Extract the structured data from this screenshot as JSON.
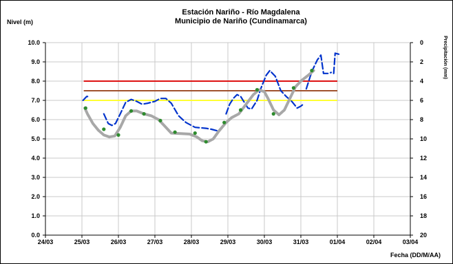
{
  "chart_data": {
    "type": "line",
    "title": "Estación Nariño  - Río Magdalena",
    "subtitle": "Municipio de Nariño (Cundinamarca)",
    "ylabel": "Nivel (m)",
    "xlabel": "Fecha (DD/M/AA)",
    "y2label": "Precipitación (mm)",
    "grid": true,
    "legend": "none",
    "ylim": [
      0,
      10
    ],
    "y2lim": [
      20,
      0
    ],
    "yticks": [
      "0.0",
      "1.0",
      "2.0",
      "3.0",
      "4.0",
      "5.0",
      "6.0",
      "7.0",
      "8.0",
      "9.0",
      "10.0"
    ],
    "y2ticks": [
      "0",
      "2",
      "4",
      "6",
      "8",
      "10",
      "12",
      "14",
      "16",
      "18",
      "20"
    ],
    "xticks": [
      "24/03",
      "25/03",
      "26/03",
      "27/03",
      "28/03",
      "29/03",
      "30/03",
      "31/03",
      "01/04",
      "02/04",
      "03/04"
    ],
    "thresholds": [
      {
        "value": 8.0,
        "color": "#dd1111"
      },
      {
        "value": 7.5,
        "color": "#a0522d"
      },
      {
        "value": 7.0,
        "color": "#ffff33"
      }
    ],
    "series": [
      {
        "style": "dashed",
        "color": "#0033cc",
        "segments": [
          [
            [
              1.03,
              7.0
            ],
            [
              1.13,
              7.2
            ],
            [
              1.2,
              7.2
            ]
          ],
          [
            [
              1.6,
              6.3
            ],
            [
              1.72,
              5.8
            ],
            [
              1.82,
              5.7
            ],
            [
              1.92,
              5.8
            ],
            [
              2.05,
              6.3
            ],
            [
              2.2,
              6.9
            ],
            [
              2.35,
              7.05
            ],
            [
              2.5,
              6.95
            ],
            [
              2.65,
              6.8
            ],
            [
              2.8,
              6.85
            ],
            [
              3.0,
              6.95
            ],
            [
              3.15,
              7.1
            ],
            [
              3.3,
              7.1
            ],
            [
              3.45,
              6.85
            ],
            [
              3.65,
              6.2
            ],
            [
              3.85,
              5.85
            ],
            [
              4.1,
              5.6
            ],
            [
              4.4,
              5.55
            ],
            [
              4.55,
              5.5
            ],
            [
              4.75,
              5.4
            ],
            [
              4.85,
              5.6
            ]
          ],
          [
            [
              4.95,
              6.3
            ],
            [
              5.05,
              6.8
            ],
            [
              5.15,
              7.1
            ],
            [
              5.25,
              7.3
            ],
            [
              5.35,
              7.2
            ],
            [
              5.55,
              6.6
            ],
            [
              5.65,
              6.55
            ],
            [
              5.8,
              7.0
            ],
            [
              5.9,
              7.6
            ],
            [
              6.05,
              8.3
            ],
            [
              6.15,
              8.55
            ],
            [
              6.3,
              8.25
            ],
            [
              6.45,
              7.5
            ],
            [
              6.6,
              7.2
            ],
            [
              6.75,
              6.95
            ],
            [
              6.9,
              6.6
            ],
            [
              7.0,
              6.7
            ],
            [
              7.1,
              6.85
            ]
          ],
          [
            [
              7.15,
              7.6
            ],
            [
              7.3,
              8.5
            ],
            [
              7.45,
              9.1
            ],
            [
              7.55,
              9.35
            ],
            [
              7.62,
              8.4
            ],
            [
              7.75,
              8.4
            ],
            [
              7.83,
              8.45
            ]
          ],
          [
            [
              7.9,
              8.4
            ],
            [
              7.94,
              9.45
            ],
            [
              8.04,
              9.4
            ]
          ]
        ]
      },
      {
        "style": "solid",
        "color": "#a8a8a8",
        "segments": [
          [
            [
              1.08,
              6.6
            ],
            [
              1.15,
              6.3
            ],
            [
              1.3,
              5.8
            ],
            [
              1.45,
              5.45
            ],
            [
              1.6,
              5.2
            ],
            [
              1.75,
              5.1
            ],
            [
              1.9,
              5.15
            ],
            [
              2.05,
              5.6
            ],
            [
              2.2,
              6.2
            ],
            [
              2.35,
              6.45
            ],
            [
              2.5,
              6.45
            ],
            [
              2.7,
              6.3
            ],
            [
              2.9,
              6.2
            ],
            [
              3.1,
              6.0
            ],
            [
              3.25,
              5.7
            ],
            [
              3.45,
              5.3
            ],
            [
              3.7,
              5.28
            ],
            [
              3.95,
              5.25
            ],
            [
              4.15,
              5.1
            ],
            [
              4.3,
              4.9
            ],
            [
              4.45,
              4.85
            ],
            [
              4.6,
              5.0
            ],
            [
              4.75,
              5.4
            ],
            [
              4.95,
              5.85
            ],
            [
              5.1,
              6.1
            ],
            [
              5.3,
              6.3
            ],
            [
              5.5,
              6.8
            ],
            [
              5.7,
              7.3
            ],
            [
              5.85,
              7.55
            ],
            [
              6.0,
              7.45
            ],
            [
              6.1,
              7.1
            ],
            [
              6.25,
              6.5
            ],
            [
              6.4,
              6.25
            ],
            [
              6.55,
              6.5
            ],
            [
              6.7,
              7.1
            ],
            [
              6.85,
              7.7
            ],
            [
              7.0,
              8.0
            ],
            [
              7.2,
              8.3
            ],
            [
              7.35,
              8.55
            ]
          ]
        ]
      }
    ],
    "points": {
      "color": "#2e8b2e",
      "values": [
        [
          1.1,
          6.6
        ],
        [
          1.6,
          5.5
        ],
        [
          2.0,
          5.2
        ],
        [
          2.35,
          6.45
        ],
        [
          2.7,
          6.3
        ],
        [
          3.15,
          5.95
        ],
        [
          3.55,
          5.35
        ],
        [
          4.1,
          5.3
        ],
        [
          4.4,
          4.85
        ],
        [
          4.9,
          5.85
        ],
        [
          5.35,
          6.5
        ],
        [
          5.8,
          7.55
        ],
        [
          6.25,
          6.3
        ],
        [
          6.8,
          7.65
        ],
        [
          7.3,
          8.55
        ]
      ]
    }
  }
}
